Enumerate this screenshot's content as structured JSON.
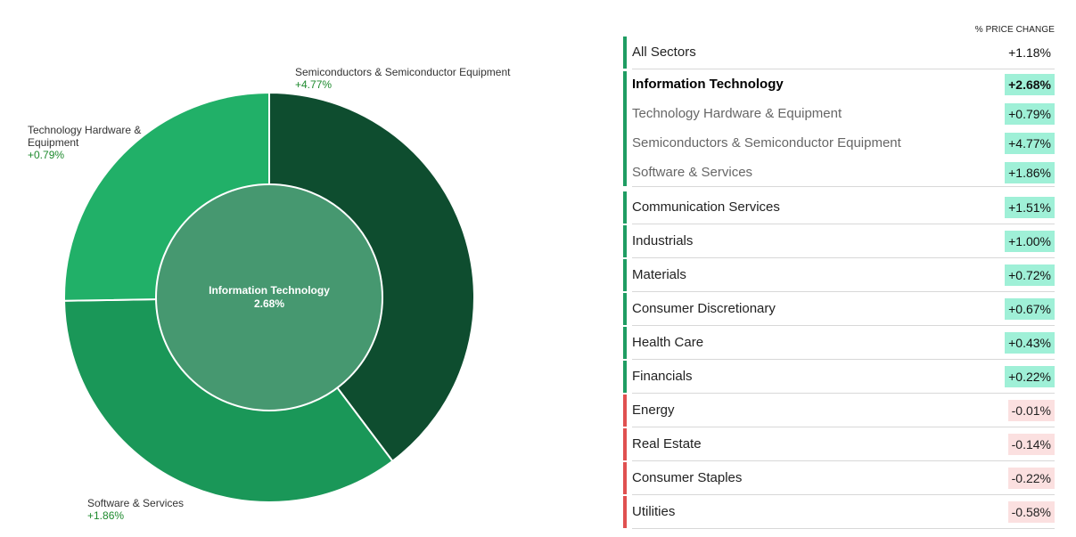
{
  "colors": {
    "seg_semiconductors": "#0e4d2f",
    "seg_software": "#1a9758",
    "seg_hardware": "#21b068",
    "center": "#469870",
    "bar_positive": "#1f9d63",
    "bar_negative": "#e05050",
    "pct_positive_bg": "#9ff0d7",
    "pct_negative_bg": "#fbe0e0"
  },
  "chart_data": {
    "type": "pie",
    "center": {
      "label": "Information Technology",
      "value": "2.68%"
    },
    "segments": [
      {
        "name": "Semiconductors & Semiconductor Equipment",
        "change": "+4.77%",
        "share": 0.3973
      },
      {
        "name": "Software & Services",
        "change": "+1.86%",
        "share": 0.3501
      },
      {
        "name": "Technology Hardware & Equipment",
        "change": "+0.79%",
        "share": 0.2526
      }
    ]
  },
  "table": {
    "header": "% PRICE CHANGE",
    "rows": [
      {
        "name": "All Sectors",
        "value": "+1.18%",
        "tone": "none",
        "style": "normal"
      },
      {
        "name": "Information Technology",
        "value": "+2.68%",
        "tone": "pos",
        "style": "bold"
      },
      {
        "name": "Technology Hardware & Equipment",
        "value": "+0.79%",
        "tone": "pos",
        "style": "sub"
      },
      {
        "name": "Semiconductors & Semiconductor Equipment",
        "value": "+4.77%",
        "tone": "pos",
        "style": "sub"
      },
      {
        "name": "Software & Services",
        "value": "+1.86%",
        "tone": "pos",
        "style": "sub"
      },
      {
        "name": "Communication Services",
        "value": "+1.51%",
        "tone": "pos",
        "style": "normal"
      },
      {
        "name": "Industrials",
        "value": "+1.00%",
        "tone": "pos",
        "style": "normal"
      },
      {
        "name": "Materials",
        "value": "+0.72%",
        "tone": "pos",
        "style": "normal"
      },
      {
        "name": "Consumer Discretionary",
        "value": "+0.67%",
        "tone": "pos",
        "style": "normal"
      },
      {
        "name": "Health Care",
        "value": "+0.43%",
        "tone": "pos",
        "style": "normal"
      },
      {
        "name": "Financials",
        "value": "+0.22%",
        "tone": "pos",
        "style": "normal"
      },
      {
        "name": "Energy",
        "value": "-0.01%",
        "tone": "neg",
        "style": "normal"
      },
      {
        "name": "Real Estate",
        "value": "-0.14%",
        "tone": "neg",
        "style": "normal"
      },
      {
        "name": "Consumer Staples",
        "value": "-0.22%",
        "tone": "neg",
        "style": "normal"
      },
      {
        "name": "Utilities",
        "value": "-0.58%",
        "tone": "neg",
        "style": "normal"
      }
    ]
  }
}
